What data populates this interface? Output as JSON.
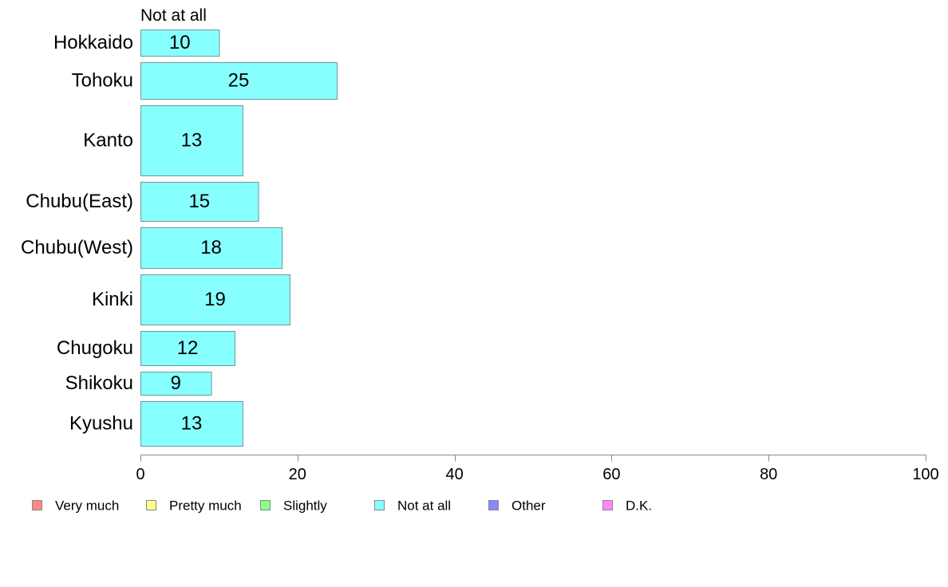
{
  "chart_data": {
    "type": "bar",
    "orientation": "horizontal",
    "header": "Not at all",
    "categories": [
      "Hokkaido",
      "Tohoku",
      "Kanto",
      "Chubu(East)",
      "Chubu(West)",
      "Kinki",
      "Chugoku",
      "Shikoku",
      "Kyushu"
    ],
    "series": [
      {
        "name": "Not at all",
        "values": [
          10,
          25,
          13,
          15,
          18,
          19,
          12,
          9,
          13
        ]
      }
    ],
    "xlim": [
      0,
      100
    ],
    "xticks": [
      "0",
      "20",
      "40",
      "60",
      "80",
      "100"
    ],
    "grid": false,
    "legend_position": "bottom",
    "legend": [
      {
        "name": "Very much",
        "color": "#ff8888"
      },
      {
        "name": "Pretty much",
        "color": "#ffff88"
      },
      {
        "name": "Slightly",
        "color": "#88ff88"
      },
      {
        "name": "Not at all",
        "color": "#88ffff"
      },
      {
        "name": "Other",
        "color": "#8888ff"
      },
      {
        "name": "D.K.",
        "color": "#ff88ff"
      }
    ],
    "bar_color": "#88ffff",
    "bar_border_color": "#6a9aa0",
    "axis_color": "#888888"
  }
}
